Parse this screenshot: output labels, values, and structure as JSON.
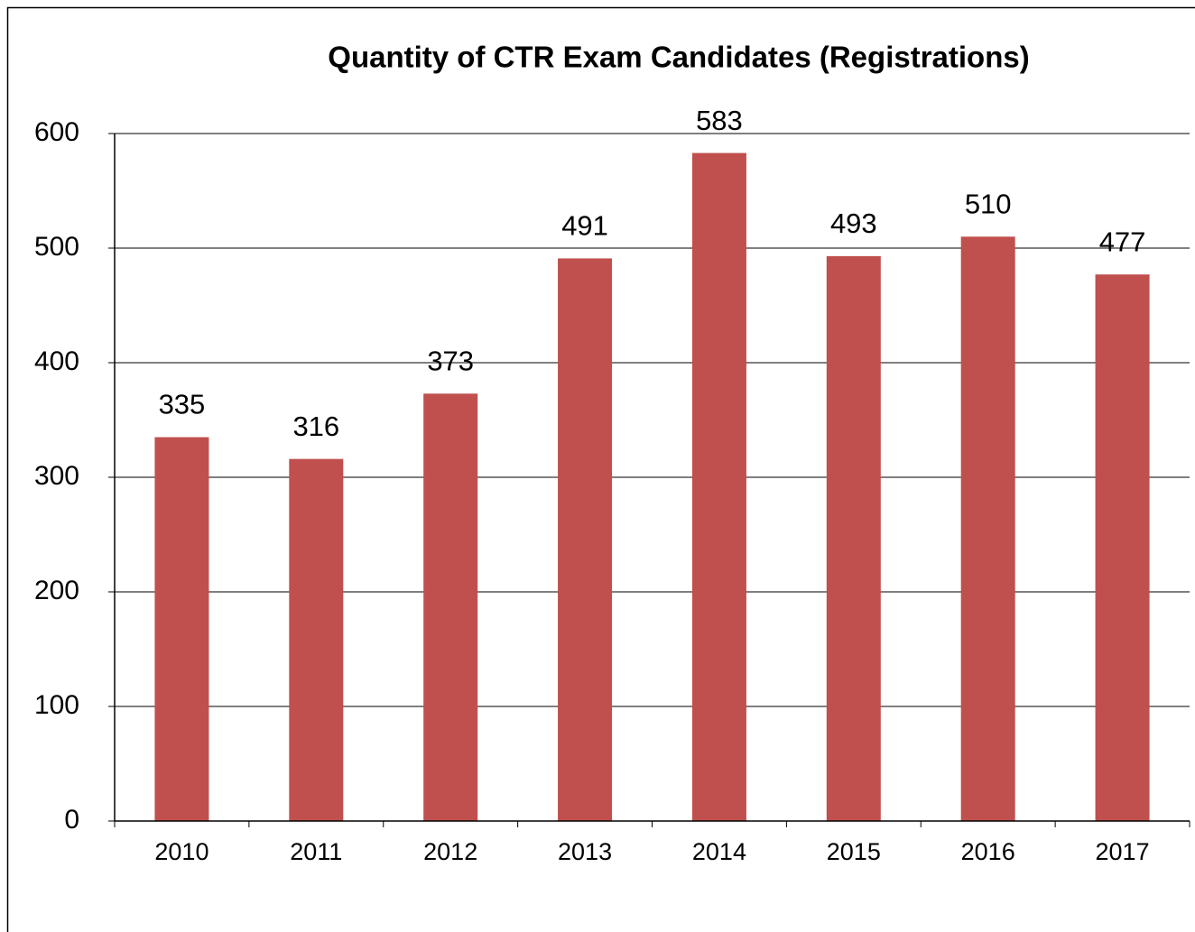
{
  "chart_data": {
    "type": "bar",
    "title": "Quantity of CTR Exam Candidates (Registrations)",
    "categories": [
      "2010",
      "2011",
      "2012",
      "2013",
      "2014",
      "2015",
      "2016",
      "2017"
    ],
    "values": [
      335,
      316,
      373,
      491,
      583,
      493,
      510,
      477
    ],
    "color": "#c0504d",
    "ylim": [
      0,
      600
    ],
    "yticks": [
      0,
      100,
      200,
      300,
      400,
      500,
      600
    ],
    "grid": true
  }
}
